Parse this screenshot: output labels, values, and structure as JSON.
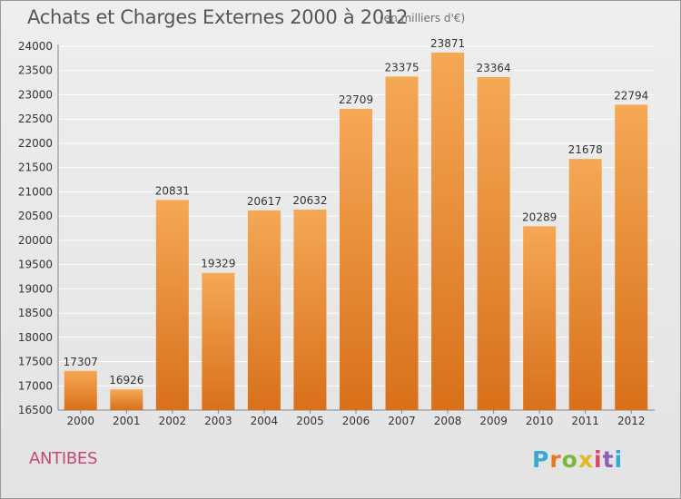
{
  "header": {
    "title": "Achats et Charges Externes 2000 à 2012",
    "subtitle": "(en milliers d'€)"
  },
  "footer": {
    "city": "ANTIBES",
    "brand_letters": [
      "P",
      "r",
      "o",
      "x",
      "i",
      "t",
      "i"
    ]
  },
  "colors": {
    "bar_light": "#f5a855",
    "bar_dark": "#d9701a",
    "city_text": "#c64a6f",
    "grid": "#ffffff",
    "axis": "#888888"
  },
  "chart_data": {
    "type": "bar",
    "title": "Achats et Charges Externes 2000 à 2012",
    "subtitle": "(en milliers d'€)",
    "categories": [
      "2000",
      "2001",
      "2002",
      "2003",
      "2004",
      "2005",
      "2006",
      "2007",
      "2008",
      "2009",
      "2010",
      "2011",
      "2012"
    ],
    "values": [
      17307,
      16926,
      20831,
      19329,
      20617,
      20632,
      22709,
      23375,
      23871,
      23364,
      20289,
      21678,
      22794
    ],
    "ylim": [
      16500,
      24000
    ],
    "yticks": [
      16500,
      17000,
      17500,
      18000,
      18500,
      19000,
      19500,
      20000,
      20500,
      21000,
      21500,
      22000,
      22500,
      23000,
      23500,
      24000
    ],
    "grid": true,
    "data_labels": true,
    "xlabel": "",
    "ylabel": ""
  }
}
